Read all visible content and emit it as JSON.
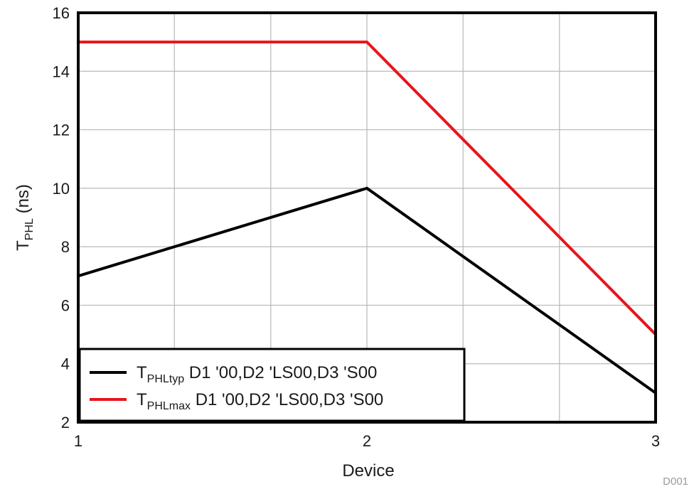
{
  "chart_data": {
    "type": "line",
    "x": [
      1,
      2,
      3
    ],
    "xlabel": "Device",
    "ylabel": {
      "main": "T",
      "sub": "PHL",
      "rest": " (ns)"
    },
    "xlim": [
      1,
      3
    ],
    "ylim": [
      2,
      16
    ],
    "xticks": [
      1,
      2,
      3
    ],
    "yticks": [
      2,
      4,
      6,
      8,
      10,
      12,
      14,
      16
    ],
    "x_grid": [
      1,
      1.333,
      1.667,
      2,
      2.333,
      2.667,
      3
    ],
    "grid": true,
    "legend_position": "bottom-left",
    "series": [
      {
        "name_main": "T",
        "name_sub": "PHLtyp",
        "name_rest": " D1 '00,D2 'LS00,D3 'S00",
        "color": "#000000",
        "values": [
          7,
          10,
          3
        ]
      },
      {
        "name_main": "T",
        "name_sub": "PHLmax",
        "name_rest": " D1 '00,D2 'LS00,D3 'S00",
        "color": "#e8141b",
        "values": [
          15,
          15,
          5
        ]
      }
    ],
    "figure_code": "D001"
  }
}
